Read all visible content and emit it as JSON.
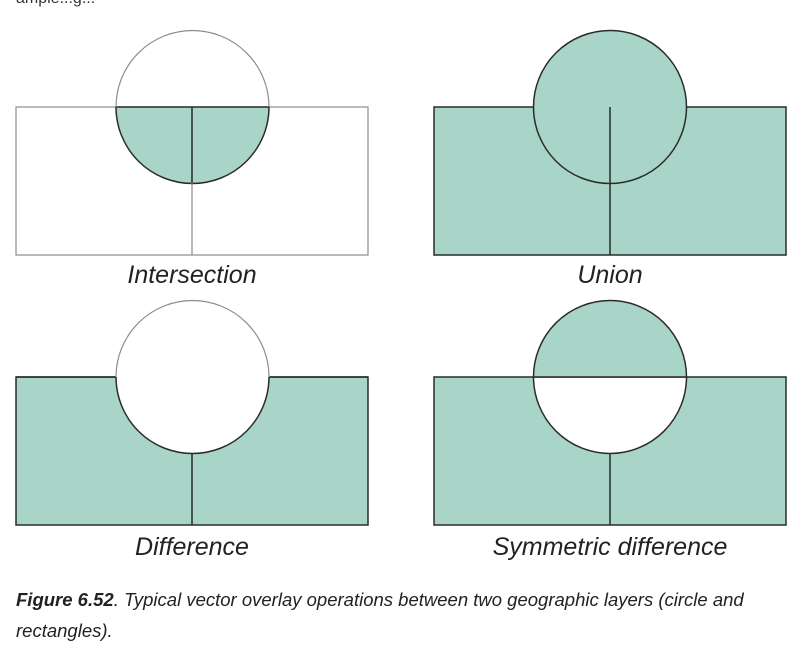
{
  "top_fragment": "ample...g...",
  "panels": {
    "intersection": {
      "label": "Intersection"
    },
    "union": {
      "label": "Union"
    },
    "difference": {
      "label": "Difference"
    },
    "symmetric_difference": {
      "label": "Symmetric difference"
    }
  },
  "colors": {
    "fill": "#a8d5c7",
    "stroke_dark": "#2b2b2b",
    "stroke_light": "#8c8c8c"
  },
  "caption": {
    "figure_number": "Figure 6.52",
    "text": ". Typical vector overlay operations between two geographic layers (circle and rectangles)."
  }
}
